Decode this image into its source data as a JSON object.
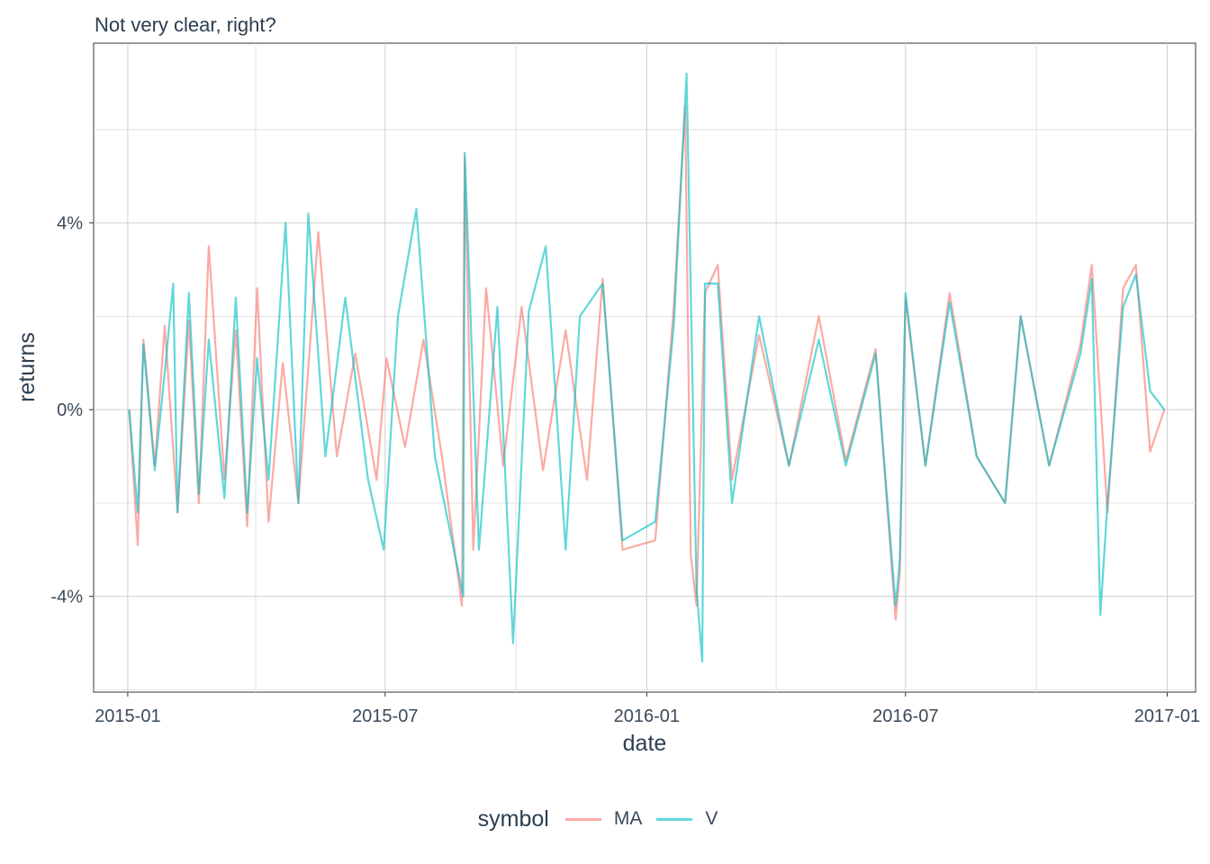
{
  "chart_data": {
    "type": "line",
    "title": "Not very clear, right?",
    "xlabel": "date",
    "ylabel": "returns",
    "x_range": [
      "2014-12-08",
      "2017-01-21"
    ],
    "ylim": [
      -0.0605,
      0.0785
    ],
    "x_ticks": [
      {
        "date": "2015-01-01",
        "label": "2015-01"
      },
      {
        "date": "2015-07-01",
        "label": "2015-07"
      },
      {
        "date": "2016-01-01",
        "label": "2016-01"
      },
      {
        "date": "2016-07-01",
        "label": "2016-07"
      },
      {
        "date": "2017-01-01",
        "label": "2017-01"
      }
    ],
    "y_ticks": [
      {
        "value": -0.04,
        "label": "-4%"
      },
      {
        "value": 0.0,
        "label": "0%"
      },
      {
        "value": 0.04,
        "label": "4%"
      }
    ],
    "grid": true,
    "legend": {
      "title": "symbol",
      "position": "bottom"
    },
    "series": [
      {
        "name": "MA",
        "color": "#F8766D",
        "points": [
          [
            "2015-01-02",
            0.0
          ],
          [
            "2015-01-08",
            -0.029
          ],
          [
            "2015-01-12",
            0.015
          ],
          [
            "2015-01-20",
            -0.012
          ],
          [
            "2015-01-27",
            0.018
          ],
          [
            "2015-02-05",
            -0.022
          ],
          [
            "2015-02-13",
            0.019
          ],
          [
            "2015-02-20",
            -0.02
          ],
          [
            "2015-02-27",
            0.035
          ],
          [
            "2015-03-10",
            -0.015
          ],
          [
            "2015-03-18",
            0.017
          ],
          [
            "2015-03-26",
            -0.025
          ],
          [
            "2015-04-02",
            0.026
          ],
          [
            "2015-04-10",
            -0.024
          ],
          [
            "2015-04-20",
            0.01
          ],
          [
            "2015-05-01",
            -0.02
          ],
          [
            "2015-05-15",
            0.038
          ],
          [
            "2015-05-28",
            -0.01
          ],
          [
            "2015-06-10",
            0.012
          ],
          [
            "2015-06-25",
            -0.015
          ],
          [
            "2015-07-02",
            0.011
          ],
          [
            "2015-07-15",
            -0.008
          ],
          [
            "2015-07-28",
            0.015
          ],
          [
            "2015-08-10",
            -0.01
          ],
          [
            "2015-08-24",
            -0.042
          ],
          [
            "2015-08-26",
            0.054
          ],
          [
            "2015-09-01",
            -0.03
          ],
          [
            "2015-09-10",
            0.026
          ],
          [
            "2015-09-22",
            -0.012
          ],
          [
            "2015-10-05",
            0.022
          ],
          [
            "2015-10-20",
            -0.013
          ],
          [
            "2015-11-05",
            0.017
          ],
          [
            "2015-11-20",
            -0.015
          ],
          [
            "2015-12-01",
            0.028
          ],
          [
            "2015-12-15",
            -0.03
          ],
          [
            "2016-01-07",
            -0.028
          ],
          [
            "2016-01-20",
            0.022
          ],
          [
            "2016-01-28",
            0.065
          ],
          [
            "2016-02-01",
            -0.031
          ],
          [
            "2016-02-05",
            -0.042
          ],
          [
            "2016-02-11",
            0.025
          ],
          [
            "2016-02-20",
            0.031
          ],
          [
            "2016-03-01",
            -0.015
          ],
          [
            "2016-03-20",
            0.016
          ],
          [
            "2016-04-10",
            -0.012
          ],
          [
            "2016-05-01",
            0.02
          ],
          [
            "2016-05-20",
            -0.011
          ],
          [
            "2016-06-10",
            0.013
          ],
          [
            "2016-06-24",
            -0.045
          ],
          [
            "2016-06-27",
            -0.035
          ],
          [
            "2016-07-01",
            0.024
          ],
          [
            "2016-07-15",
            -0.012
          ],
          [
            "2016-08-01",
            0.025
          ],
          [
            "2016-08-20",
            -0.01
          ],
          [
            "2016-09-09",
            -0.02
          ],
          [
            "2016-09-20",
            0.02
          ],
          [
            "2016-10-10",
            -0.012
          ],
          [
            "2016-11-01",
            0.014
          ],
          [
            "2016-11-09",
            0.031
          ],
          [
            "2016-11-20",
            -0.022
          ],
          [
            "2016-12-01",
            0.026
          ],
          [
            "2016-12-10",
            0.031
          ],
          [
            "2016-12-20",
            -0.009
          ],
          [
            "2016-12-30",
            0.0
          ]
        ]
      },
      {
        "name": "V",
        "color": "#00BFC4",
        "points": [
          [
            "2015-01-02",
            0.0
          ],
          [
            "2015-01-08",
            -0.022
          ],
          [
            "2015-01-12",
            0.014
          ],
          [
            "2015-01-20",
            -0.013
          ],
          [
            "2015-01-27",
            0.008
          ],
          [
            "2015-02-02",
            0.027
          ],
          [
            "2015-02-05",
            -0.022
          ],
          [
            "2015-02-13",
            0.025
          ],
          [
            "2015-02-20",
            -0.018
          ],
          [
            "2015-02-27",
            0.015
          ],
          [
            "2015-03-10",
            -0.019
          ],
          [
            "2015-03-18",
            0.024
          ],
          [
            "2015-03-26",
            -0.022
          ],
          [
            "2015-04-02",
            0.011
          ],
          [
            "2015-04-10",
            -0.015
          ],
          [
            "2015-04-22",
            0.04
          ],
          [
            "2015-05-01",
            -0.02
          ],
          [
            "2015-05-08",
            0.042
          ],
          [
            "2015-05-20",
            -0.01
          ],
          [
            "2015-06-03",
            0.024
          ],
          [
            "2015-06-19",
            -0.015
          ],
          [
            "2015-06-30",
            -0.03
          ],
          [
            "2015-07-10",
            0.02
          ],
          [
            "2015-07-23",
            0.043
          ],
          [
            "2015-08-05",
            -0.01
          ],
          [
            "2015-08-25",
            -0.04
          ],
          [
            "2015-08-26",
            0.055
          ],
          [
            "2015-09-05",
            -0.03
          ],
          [
            "2015-09-18",
            0.022
          ],
          [
            "2015-09-29",
            -0.05
          ],
          [
            "2015-10-10",
            0.021
          ],
          [
            "2015-10-22",
            0.035
          ],
          [
            "2015-11-05",
            -0.03
          ],
          [
            "2015-11-15",
            0.02
          ],
          [
            "2015-12-01",
            0.027
          ],
          [
            "2015-12-15",
            -0.028
          ],
          [
            "2016-01-07",
            -0.024
          ],
          [
            "2016-01-20",
            0.018
          ],
          [
            "2016-01-29",
            0.072
          ],
          [
            "2016-02-05",
            -0.038
          ],
          [
            "2016-02-09",
            -0.054
          ],
          [
            "2016-02-11",
            0.027
          ],
          [
            "2016-02-20",
            0.027
          ],
          [
            "2016-03-01",
            -0.02
          ],
          [
            "2016-03-20",
            0.02
          ],
          [
            "2016-04-10",
            -0.012
          ],
          [
            "2016-05-01",
            0.015
          ],
          [
            "2016-05-20",
            -0.012
          ],
          [
            "2016-06-10",
            0.012
          ],
          [
            "2016-06-24",
            -0.042
          ],
          [
            "2016-06-27",
            -0.032
          ],
          [
            "2016-07-01",
            0.025
          ],
          [
            "2016-07-15",
            -0.012
          ],
          [
            "2016-08-01",
            0.023
          ],
          [
            "2016-08-20",
            -0.01
          ],
          [
            "2016-09-09",
            -0.02
          ],
          [
            "2016-09-20",
            0.02
          ],
          [
            "2016-10-10",
            -0.012
          ],
          [
            "2016-11-01",
            0.012
          ],
          [
            "2016-11-09",
            0.028
          ],
          [
            "2016-11-15",
            -0.044
          ],
          [
            "2016-11-20",
            -0.02
          ],
          [
            "2016-12-01",
            0.022
          ],
          [
            "2016-12-10",
            0.029
          ],
          [
            "2016-12-20",
            0.004
          ],
          [
            "2016-12-30",
            0.0
          ]
        ]
      }
    ]
  }
}
